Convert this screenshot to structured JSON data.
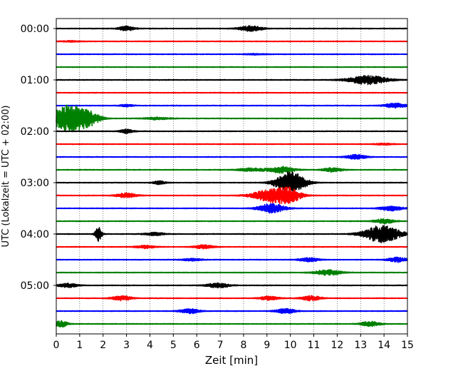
{
  "chart_data": {
    "type": "line",
    "chart_kind": "helicorder (seismogram drum plot)",
    "title": "",
    "xlabel": "Zeit  [min]",
    "ylabel": "UTC (Lokalzeit = UTC + 02:00)",
    "xlim": [
      0,
      15
    ],
    "x_ticks": [
      "0",
      "1",
      "2",
      "3",
      "4",
      "5",
      "6",
      "7",
      "8",
      "9",
      "10",
      "11",
      "12",
      "13",
      "14",
      "15"
    ],
    "y_tick_labels": [
      "00:00",
      "01:00",
      "02:00",
      "03:00",
      "04:00",
      "05:00"
    ],
    "grid": "vertical dotted lines at each minute",
    "legend": "none",
    "trace_colors": [
      "#000000",
      "#ff0000",
      "#0000ff",
      "#008000"
    ],
    "rows_per_hour": 4,
    "minutes_per_row": 15,
    "series": [
      {
        "start": "00:00",
        "events": [
          [
            3.0,
            0.25,
            0.6
          ],
          [
            8.3,
            0.35,
            0.7
          ]
        ]
      },
      {
        "start": "00:15",
        "events": [
          [
            0.6,
            0.3,
            0.15
          ]
        ]
      },
      {
        "start": "00:30",
        "events": [
          [
            8.5,
            0.3,
            0.15
          ]
        ]
      },
      {
        "start": "00:45",
        "events": []
      },
      {
        "start": "01:00",
        "events": [
          [
            13.3,
            0.6,
            1.1
          ]
        ]
      },
      {
        "start": "01:15",
        "events": []
      },
      {
        "start": "01:30",
        "events": [
          [
            3.0,
            0.2,
            0.3
          ],
          [
            14.5,
            0.35,
            0.6
          ]
        ]
      },
      {
        "start": "01:45",
        "events": [
          [
            0.6,
            0.55,
            3.5
          ],
          [
            1.5,
            0.3,
            1.0
          ],
          [
            4.3,
            0.4,
            0.3
          ]
        ]
      },
      {
        "start": "02:00",
        "events": [
          [
            3.0,
            0.2,
            0.5
          ]
        ]
      },
      {
        "start": "02:15",
        "events": [
          [
            14.0,
            0.3,
            0.2
          ]
        ]
      },
      {
        "start": "02:30",
        "events": [
          [
            12.8,
            0.3,
            0.6
          ]
        ]
      },
      {
        "start": "02:45",
        "events": [
          [
            8.3,
            0.4,
            0.4
          ],
          [
            9.6,
            0.4,
            0.8
          ],
          [
            11.8,
            0.3,
            0.5
          ]
        ]
      },
      {
        "start": "03:00",
        "events": [
          [
            4.4,
            0.2,
            0.4
          ],
          [
            10.0,
            0.45,
            2.8
          ]
        ]
      },
      {
        "start": "03:15",
        "events": [
          [
            3.0,
            0.3,
            0.6
          ],
          [
            9.3,
            0.6,
            1.8
          ],
          [
            10.0,
            0.3,
            1.2
          ]
        ]
      },
      {
        "start": "03:30",
        "events": [
          [
            9.2,
            0.4,
            1.2
          ],
          [
            14.3,
            0.35,
            0.6
          ]
        ]
      },
      {
        "start": "03:45",
        "events": [
          [
            14.0,
            0.3,
            0.6
          ]
        ]
      },
      {
        "start": "04:00",
        "events": [
          [
            1.8,
            0.1,
            2.0
          ],
          [
            4.2,
            0.3,
            0.4
          ],
          [
            13.9,
            0.55,
            2.2
          ]
        ]
      },
      {
        "start": "04:15",
        "events": [
          [
            3.8,
            0.3,
            0.4
          ],
          [
            6.3,
            0.3,
            0.5
          ]
        ]
      },
      {
        "start": "04:30",
        "events": [
          [
            5.8,
            0.3,
            0.3
          ],
          [
            10.8,
            0.3,
            0.5
          ],
          [
            14.6,
            0.3,
            0.6
          ]
        ]
      },
      {
        "start": "04:45",
        "events": [
          [
            11.6,
            0.4,
            0.7
          ]
        ]
      },
      {
        "start": "05:00",
        "events": [
          [
            0.5,
            0.3,
            0.5
          ],
          [
            6.9,
            0.35,
            0.6
          ]
        ]
      },
      {
        "start": "05:15",
        "events": [
          [
            2.8,
            0.3,
            0.6
          ],
          [
            9.1,
            0.3,
            0.5
          ],
          [
            10.9,
            0.3,
            0.6
          ]
        ]
      },
      {
        "start": "05:30",
        "events": [
          [
            5.7,
            0.3,
            0.6
          ],
          [
            9.8,
            0.3,
            0.6
          ]
        ]
      },
      {
        "start": "05:45",
        "events": [
          [
            0.2,
            0.2,
            0.8
          ],
          [
            13.4,
            0.3,
            0.6
          ]
        ]
      }
    ]
  }
}
